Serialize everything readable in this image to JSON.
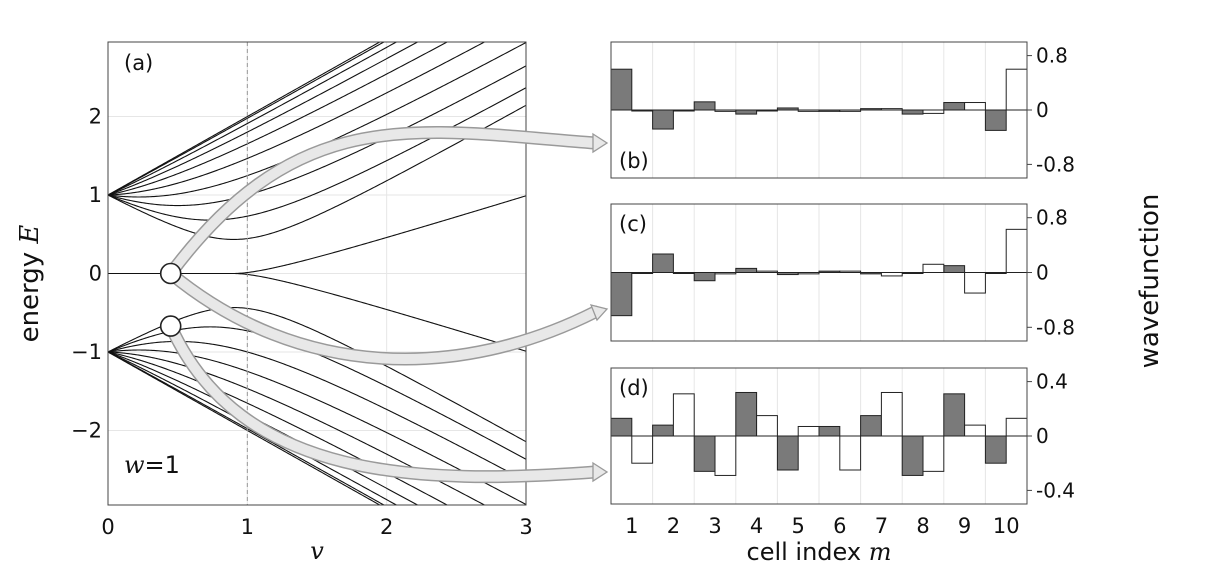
{
  "chart_data": [
    {
      "id": "a",
      "type": "line",
      "panel_label": "(a)",
      "annotation": "w = 1",
      "annotation_var": "w",
      "annotation_val": "=1",
      "xlabel": "v",
      "ylabel_text": "energy ",
      "ylabel_var": "E",
      "xlim": [
        0,
        3
      ],
      "ylim": [
        -2.95,
        2.95
      ],
      "xticks": [
        0,
        1,
        2,
        3
      ],
      "xtick_labels": [
        "0",
        "1",
        "2",
        "3"
      ],
      "yticks": [
        2,
        1,
        0,
        -1,
        -2
      ],
      "ytick_labels": [
        "2",
        "1",
        "0",
        "−1",
        "−2"
      ],
      "dashed_vline_x": 1,
      "markers": [
        {
          "x": 0.45,
          "y": 0
        },
        {
          "x": 0.45,
          "y": -0.67
        }
      ],
      "grid": true,
      "legend": "none"
    },
    {
      "id": "b",
      "type": "bar",
      "panel_label": "(b)",
      "categories": [
        "1",
        "2",
        "3",
        "4",
        "5",
        "6",
        "7",
        "8",
        "9",
        "10"
      ],
      "ylim": [
        -1.0,
        1.0
      ],
      "yticks": [
        0.8,
        0,
        -0.8
      ],
      "ytick_labels": [
        "0.8",
        "0",
        "-0.8"
      ],
      "series": [
        {
          "values": [
            0.6,
            -0.28,
            0.12,
            -0.06,
            0.03,
            -0.02,
            0.02,
            -0.06,
            0.11,
            -0.3
          ]
        },
        {
          "values": [
            -0.01,
            0.0,
            -0.02,
            0.0,
            -0.02,
            -0.02,
            0.02,
            -0.05,
            0.11,
            0.6
          ]
        }
      ]
    },
    {
      "id": "c",
      "type": "bar",
      "panel_label": "(c)",
      "categories": [
        "1",
        "2",
        "3",
        "4",
        "5",
        "6",
        "7",
        "8",
        "9",
        "10"
      ],
      "ylim": [
        -1.0,
        1.0
      ],
      "yticks": [
        0.8,
        0,
        -0.8
      ],
      "ytick_labels": [
        "0.8",
        "0",
        "-0.8"
      ],
      "series": [
        {
          "values": [
            -0.63,
            0.27,
            -0.12,
            0.06,
            -0.03,
            0.02,
            -0.02,
            0.0,
            0.1,
            -0.01
          ]
        },
        {
          "values": [
            0.0,
            0.0,
            -0.02,
            0.02,
            -0.02,
            0.02,
            -0.05,
            0.12,
            -0.3,
            0.63
          ]
        }
      ]
    },
    {
      "id": "d",
      "type": "bar",
      "panel_label": "(d)",
      "categories": [
        "1",
        "2",
        "3",
        "4",
        "5",
        "6",
        "7",
        "8",
        "9",
        "10"
      ],
      "xlabel_text": "cell index ",
      "xlabel_var": "m",
      "ylim": [
        -0.5,
        0.5
      ],
      "yticks": [
        0.4,
        0,
        -0.4
      ],
      "ytick_labels": [
        "0.4",
        "0",
        "-0.4"
      ],
      "series": [
        {
          "values": [
            0.13,
            0.08,
            -0.26,
            0.32,
            -0.25,
            0.07,
            0.15,
            -0.29,
            0.31,
            -0.2
          ]
        },
        {
          "values": [
            -0.2,
            0.31,
            -0.29,
            0.15,
            0.07,
            -0.25,
            0.32,
            -0.26,
            0.08,
            0.13
          ]
        }
      ]
    }
  ],
  "shared_ylabel": "wavefunction",
  "colors": {
    "filled_bar": "#7a7a7a",
    "open_bar": "#ffffff",
    "line": "#111111",
    "arrow_fill": "#e8e8e8",
    "arrow_stroke": "#9a9a9a",
    "grid": "#e6e6e6"
  }
}
